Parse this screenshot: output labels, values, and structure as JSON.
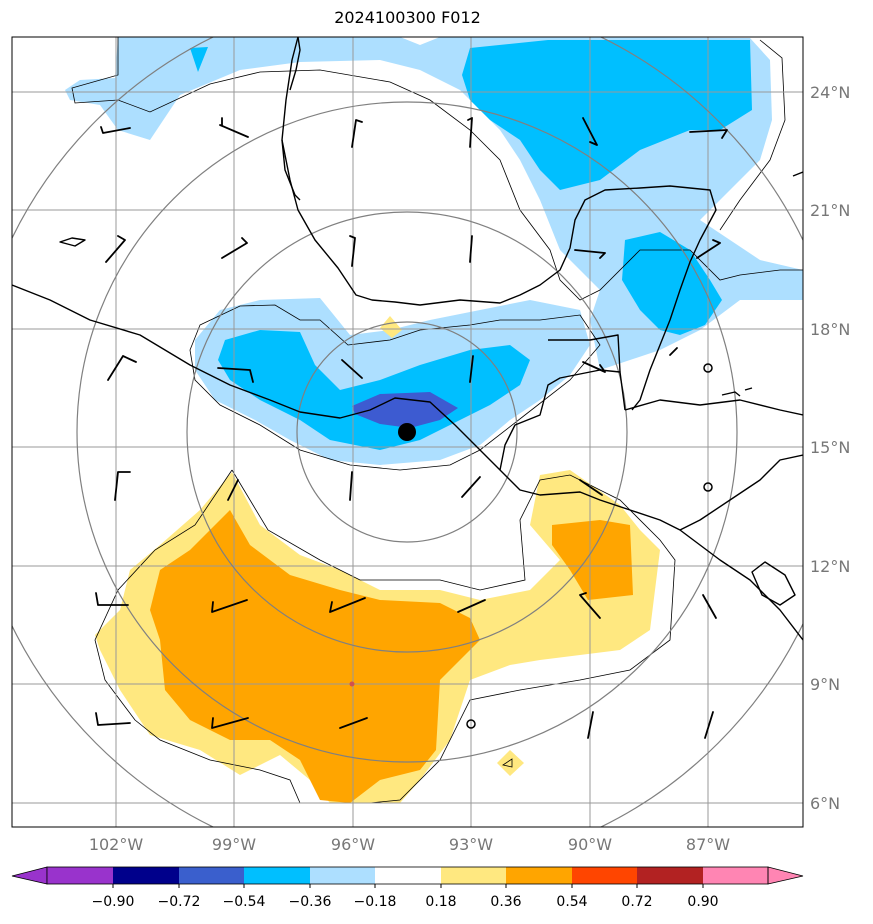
{
  "title": "2024100300 F012",
  "map": {
    "lon_range": [
      -104.5,
      -84.5
    ],
    "lat_range": [
      5.4,
      25.4
    ],
    "lat_ticks": [
      {
        "value": 24,
        "label": "24°N"
      },
      {
        "value": 21,
        "label": "21°N"
      },
      {
        "value": 18,
        "label": "18°N"
      },
      {
        "value": 15,
        "label": "15°N"
      },
      {
        "value": 12,
        "label": "12°N"
      },
      {
        "value": 9,
        "label": "9°N"
      },
      {
        "value": 6,
        "label": "6°N"
      }
    ],
    "lon_ticks": [
      {
        "value": -102,
        "label": "102°W"
      },
      {
        "value": -99,
        "label": "99°W"
      },
      {
        "value": -96,
        "label": "96°W"
      },
      {
        "value": -93,
        "label": "93°W"
      },
      {
        "value": -90,
        "label": "90°W"
      },
      {
        "value": -87,
        "label": "87°W"
      }
    ],
    "storm_center": {
      "lon": -94.7,
      "lat": 15.4
    },
    "colors": {
      "very_pale_blue": "#addfff",
      "light_blue": "#00bfff",
      "medium_blue": "#3d5bd1",
      "pale_yellow": "#ffe880",
      "orange": "#ffa500",
      "gridline": "#999999",
      "ring": "#808080"
    }
  },
  "colorbar": {
    "colors": [
      "#9933cc",
      "#00008b",
      "#3a5fcd",
      "#00bfff",
      "#addfff",
      "#ffffff",
      "#ffe880",
      "#ffa500",
      "#ff4500",
      "#b22222",
      "#ff85b3"
    ],
    "labels": [
      "−0.90",
      "−0.72",
      "−0.54",
      "−0.36",
      "−0.18",
      "0.18",
      "0.36",
      "0.54",
      "0.72",
      "0.90"
    ]
  }
}
